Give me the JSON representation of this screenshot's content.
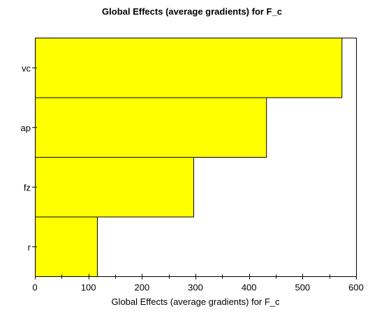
{
  "chart_data": {
    "type": "bar",
    "orientation": "horizontal",
    "title": "Global Effects (average gradients) for F_c",
    "xlabel": "Global Effects (average gradients) for F_c",
    "ylabel": "",
    "categories": [
      "vc",
      "ap",
      "fz",
      "r"
    ],
    "values": [
      573,
      432,
      296,
      116
    ],
    "xlim": [
      0,
      600
    ],
    "xticks": [
      0,
      100,
      200,
      300,
      400,
      500,
      600
    ],
    "grid": false,
    "legend": "none",
    "bar_color": "#ffff00",
    "bar_edge_color": "#000000"
  }
}
